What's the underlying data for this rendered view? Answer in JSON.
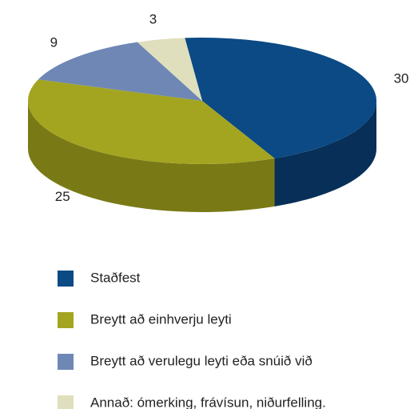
{
  "chart_data": {
    "type": "pie3d",
    "categories": [
      "Staðfest",
      "Breytt að einhverju leyti",
      "Breytt að verulegu leyti eða snúið við",
      "Annað: ómerking, frávísun, niðurfelling."
    ],
    "values": [
      30,
      25,
      9,
      3
    ],
    "colors": [
      "#0b4a84",
      "#a3a521",
      "#6e87b5",
      "#dfdfbd"
    ],
    "side_colors": [
      "#072f58",
      "#797a16",
      "#506691",
      "#b7b799"
    ]
  }
}
